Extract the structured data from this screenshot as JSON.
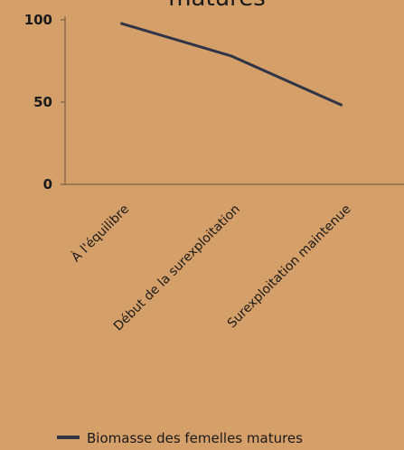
{
  "chart_data": {
    "type": "line",
    "title": "matures",
    "categories": [
      "À l'équilibre",
      "Début de la surexploitation",
      "Surexploitation maintenue"
    ],
    "series": [
      {
        "name": "Biomasse des femelles matures",
        "values": [
          98,
          78,
          48
        ]
      }
    ],
    "ylim": [
      0,
      100
    ],
    "yticks": [
      0,
      50,
      100
    ],
    "grid": false,
    "legend": "bottom",
    "colors": {
      "background": "#d49f69",
      "line": "#2f3447",
      "axis": "#8a6a4a"
    }
  }
}
